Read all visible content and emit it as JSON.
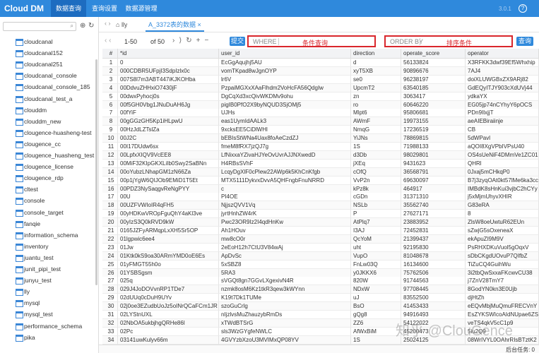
{
  "header": {
    "logo": "Cloud DM",
    "tabs": [
      "数据查询",
      "查询设置",
      "数据源管理"
    ],
    "version": "3.0.1",
    "help": "?"
  },
  "sidebar": {
    "items": [
      "cloudcanal",
      "cloudcanal152",
      "cloudcanal251",
      "cloudcanal_console",
      "cloudcanal_console_185",
      "cloudcanal_test_a",
      "clouddm",
      "clouddm_new",
      "clougence-huasheng-test",
      "clougence_cc",
      "clougence_huasheng_test",
      "clougence_license",
      "clougence_rdp",
      "cltest",
      "console",
      "console_target",
      "fanqie",
      "information_schema",
      "inventory",
      "juantu_test",
      "junit_pipi_test",
      "junyu_test",
      "lly",
      "mysql",
      "mysql_test",
      "performance_schema",
      "pika"
    ]
  },
  "tabs": [
    "lly",
    "A_3372表的数据"
  ],
  "toolbar": {
    "range": "1-50",
    "of": "of 50",
    "submit": "提交",
    "where": "WHERE",
    "where_hint": "条件查询",
    "order_by": "ORDER BY",
    "order_hint": "排序条件",
    "query": "查询"
  },
  "table": {
    "columns": [
      "#",
      "*id",
      "user_id",
      "direction",
      "operate_score",
      "operator"
    ],
    "rows": [
      [
        1,
        "0",
        "EcGgAqujhj5AU",
        "d",
        56133824,
        "X3RFKK3dwf39Ef5Whxhip"
      ],
      [
        2,
        "000CDBR5UFpjI3SdpIzlx0c",
        "vomTKpad8wJgnOYP",
        "xyT5XB",
        90896676,
        "7AJ4"
      ],
      [
        3,
        "007S8l7m3ABT447iKJKOHba",
        "lr6V",
        "se0",
        96238197,
        "doiXLUWGBxZX9ARj82"
      ],
      [
        4,
        "00DdvuZHHxiO7430jF",
        "PzpaiMGXxXAaFlhdm2VoHcFA56QdgIw",
        "UpcmT2",
        63540185,
        "GdEQyITJY903cXdUVj44"
      ],
      [
        5,
        "00dwxPyhocj0s",
        "DgCqXd3xcQivWKDMv9ohu",
        "zn",
        3063417,
        "ydkaYX"
      ],
      [
        6,
        "00f5GH0Vbg1JNuDuAH6Jg",
        "pigIB0PfO2X9byNQUD3SjOMj5",
        "ro",
        60646220,
        "EG05jp74nCYhyY6pOCS"
      ],
      [
        7,
        "00fYiF",
        "UJHs",
        "Mlpt6",
        95806681,
        "PDn9IlxjjT"
      ],
      [
        8,
        "00gGGzGH5Kp1iHLpwU",
        "eas1UymIdAALk3",
        "AWmF",
        19973155,
        "aeAIEBiraiinje"
      ],
      [
        9,
        "00HzJdLZTslZa",
        "9xcksEE5CiDlWHl",
        "NmqG",
        17236519,
        "CB"
      ],
      [
        10,
        "00J2C",
        "bEBIsStWNa4Uax8foAeCzdZJ",
        "YiJNs",
        78869815,
        "5dWPavl"
      ],
      [
        11,
        "00I17DUdw6sx",
        "fmeM8fRX7jzQJ7g",
        "1S",
        71988133,
        "aQOI8XgVPbIVPsU40"
      ],
      [
        12,
        "00LpfxXIQV9VcEE8",
        "LfNixxaYZivaHJYeOvUvrAJJNXwedD",
        "d3Db",
        98029801,
        "OS4sUeNiF4DMmVe1ZC01"
      ],
      [
        13,
        "00MiF32KIpGKXLiIb0Swy2SaBNn",
        "H4RBsSVhF",
        "jXEq",
        9431623,
        "QHRl"
      ],
      [
        14,
        "00oYubzLNhapGM1zN66Za",
        "LcqyDgXlF0cPlew22AWp6k5KhCnKfgb",
        "cOfQ",
        36568791,
        "0Jxaj5mCHkqP0"
      ],
      [
        15,
        "00p1jYgW6QIJOb9EMiD1T5Et",
        "MTX5111DykvxDvvA5QHFngbFnuNRRD",
        "VvP2n",
        69630097,
        "B7j3zyqOAt0kt57lMe6ka3cc"
      ],
      [
        16,
        "00PDZ3NySaqgvReNgPYY",
        "c",
        "kPz8k",
        464917,
        "IMBdK8sHnKui3vjbC2hCYy"
      ],
      [
        17,
        "00U",
        "PI4OE",
        "cGDn",
        31371310,
        "j5xMjmUhyvXHIR"
      ],
      [
        18,
        "00UZFVWIoIR4qFH5",
        "NjjszQVV1Vq",
        "NSLb",
        35562740,
        "G83eRA"
      ],
      [
        19,
        "00yHDKwVROpFguQhY4aKl3ve",
        "jyrtHnhZW4rK",
        "P",
        27627171,
        "8"
      ],
      [
        20,
        "00yIzS3Q0kRVD9kW",
        "Pwc23OR9Iz2I4qdHnKw",
        "AtPlq7",
        23883952,
        "ZlsW8oeUwtuR62EUn"
      ],
      [
        21,
        "0165JZFyARMqpLxXH5Sr5OP",
        "Ah1HOuv",
        "I3AJ",
        72452831,
        "sZwjG5sOxeneaX"
      ],
      [
        22,
        "01lgpwic6ee4",
        "mw8cO0r",
        "QcYoM",
        21399437,
        "ekApuZI9M9V"
      ],
      [
        23,
        "01Jw",
        "2eEoH12h7CtU3V84wAj",
        "uht",
        92195830,
        "PsRHXDKuVuol5gOqxV"
      ],
      [
        24,
        "01Ktk0kS9oa30ARmYMD0oE6Es",
        "ApDvSc",
        "VupO",
        81048678,
        "sDbCKgdUOvuP7QIfbZ"
      ],
      [
        25,
        "01yFMGT55h0o",
        "5xSBZ8",
        "FnLw03Q",
        16134600,
        "TiZuCQ4GuihWu"
      ],
      [
        26,
        "01YSBSgsm",
        "5RA3",
        "y0JKKX6",
        75762506,
        "3i2tbQwSxxaFKcwvCU38"
      ],
      [
        27,
        "025q",
        "sVGQt8gn7GGvLXgexivN4R",
        "820W",
        91744563,
        "j7ZnV28TmY7"
      ],
      [
        28,
        "029J4JoDOVvnRP1TDe7",
        "nzmk8osM6Kz1tkR3qew3kWYnn",
        "NDxW",
        97708445,
        "8GodYN0kn3E0Ujb"
      ],
      [
        29,
        "02dUUq0cDuH9UYv",
        "K19t7Dk1TUMe",
        "uJ",
        83552500,
        "djHtZh"
      ],
      [
        30,
        "02j0oe3EZudbUoJz5oINrQCaFCm1JR",
        "szoGuCrlg",
        "BsO",
        41453433,
        "eEQvMbjMuQmuFRECVnY"
      ],
      [
        31,
        "02LYStnUXL",
        "nIjzlvsMuZhauzybRmDs",
        "gQg8",
        94916493,
        "EsZYKSWIcoAIdNUpae6ZS"
      ],
      [
        32,
        "02NbOA5ukbjhgQRHe86l",
        "xTWdBTSrG",
        "ZZ6",
        54122022,
        "veTS4qkV5cC1p9"
      ],
      [
        33,
        "02Pc",
        "sls3WzGYgfeNWLC",
        "AfWxBiM",
        45200473,
        "5iu2Q9"
      ],
      [
        34,
        "03141uwKulyv66m",
        "4GVYzbXzoU3MVIMxQP08YV",
        "1S",
        25024125,
        "08WrIVYL0OAhrRIsBTztK2"
      ]
    ]
  },
  "status": "后台任务: 0",
  "watermark": "知乎 @ClouGence"
}
